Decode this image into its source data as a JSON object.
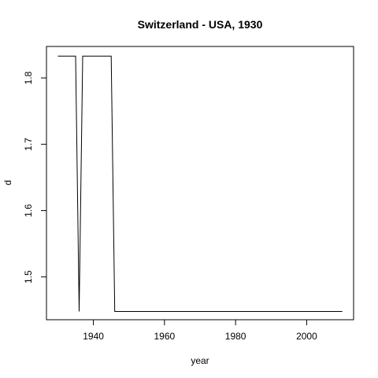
{
  "chart_data": {
    "type": "line",
    "title": "Switzerland - USA, 1930",
    "xlabel": "year",
    "ylabel": "d",
    "xlim": [
      1926.8,
      2013.2
    ],
    "ylim": [
      1.4355,
      1.8475
    ],
    "xticks": [
      1940,
      1960,
      1980,
      2000
    ],
    "yticks": [
      1.5,
      1.6,
      1.7,
      1.8
    ],
    "grid": false,
    "series": [
      {
        "color": "#000000",
        "x": [
          1930,
          1935,
          1936,
          1937,
          1938,
          1939,
          1940,
          1941,
          1942,
          1943,
          1944,
          1945,
          1946,
          1950,
          1960,
          1970,
          1980,
          1990,
          2000,
          2010
        ],
        "y": [
          1.833,
          1.833,
          1.448,
          1.833,
          1.833,
          1.833,
          1.833,
          1.833,
          1.833,
          1.833,
          1.833,
          1.833,
          1.448,
          1.448,
          1.448,
          1.448,
          1.448,
          1.448,
          1.448,
          1.448
        ]
      }
    ]
  }
}
